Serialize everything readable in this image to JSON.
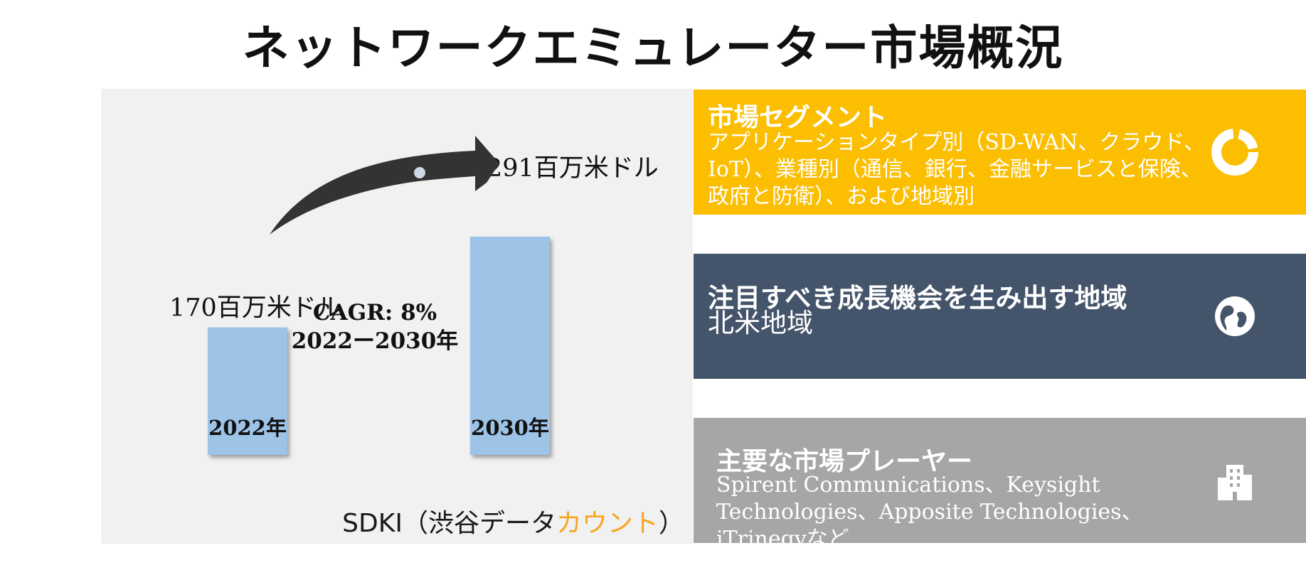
{
  "title": "ネットワークエミュレーター市場概況",
  "chart_data": {
    "type": "bar",
    "categories": [
      "2022年",
      "2030年"
    ],
    "values": [
      170,
      291
    ],
    "value_labels": [
      "170百万米ドル",
      "291百万米ドル"
    ],
    "title": "",
    "xlabel": "",
    "ylabel": "",
    "ylim": [
      0,
      300
    ],
    "grid": false,
    "legend": "none",
    "bar_color": "#9dc3e6",
    "arrow_color": "#333333",
    "annotation": {
      "cagr": "CAGR: 8%",
      "period": "2022ー2030年"
    }
  },
  "source": {
    "prefix": "SDKI（渋谷データ",
    "accent": "カウント",
    "suffix": "）"
  },
  "cards": {
    "segments": {
      "heading": "市場セグメント",
      "body": "アプリケーションタイプ別（SD-WAN、クラウド、IoT）、業種別（通信、銀行、金融サービスと保険、政府と防衛）、および地域別",
      "icon": "donut-chart-icon",
      "color": "#fbbe00"
    },
    "region": {
      "heading": "注目すべき成長機会を生み出す地域",
      "body": "北米地域",
      "icon": "globe-icon",
      "color": "#44546a"
    },
    "players": {
      "heading": "主要な市場プレーヤー",
      "body": "Spirent Communications、Keysight Technologies、Apposite Technologies、iTrinegyなど",
      "icon": "building-icon",
      "color": "#a6a6a6"
    }
  }
}
